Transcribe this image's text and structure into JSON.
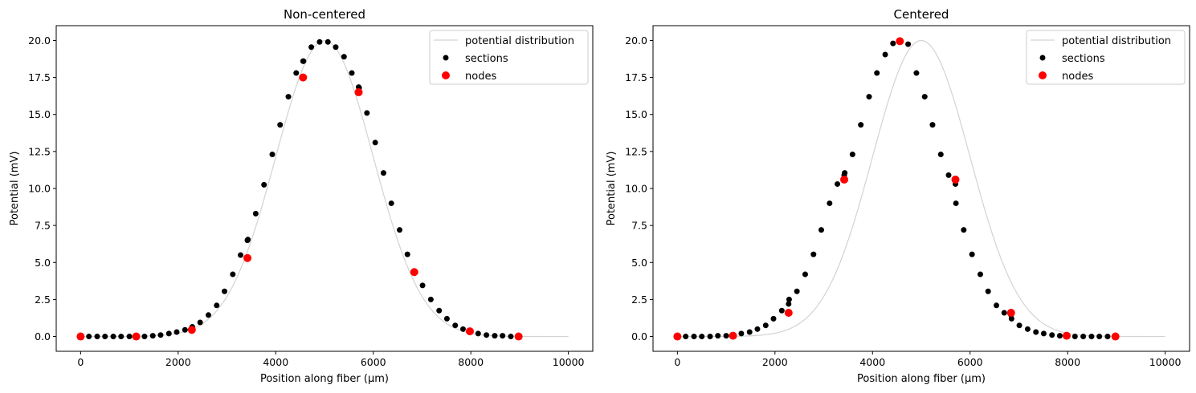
{
  "chart_data": [
    {
      "type": "scatter",
      "title": "Non-centered",
      "xlabel": "Position along fiber (µm)",
      "ylabel": "Potential (mV)",
      "xlim": [
        -500,
        10500
      ],
      "ylim": [
        -1.0,
        21.0
      ],
      "xticks": [
        0,
        2000,
        4000,
        6000,
        8000,
        10000
      ],
      "xtick_labels": [
        "0",
        "2000",
        "4000",
        "6000",
        "8000",
        "10000"
      ],
      "yticks": [
        0.0,
        2.5,
        5.0,
        7.5,
        10.0,
        12.5,
        15.0,
        17.5,
        20.0
      ],
      "ytick_labels": [
        "0.0",
        "2.5",
        "5.0",
        "7.5",
        "10.0",
        "12.5",
        "15.0",
        "17.5",
        "20.0"
      ],
      "grid": false,
      "legend": {
        "position": "top-right",
        "entries": [
          "potential distribution",
          "sections",
          "nodes"
        ]
      },
      "curve": {
        "name": "potential distribution",
        "color": "#d3d3d3",
        "x0": 0,
        "x1": 10000,
        "amplitude": 20,
        "center": 5000,
        "sigma": 1000
      },
      "series": [
        {
          "name": "sections",
          "color": "#000000",
          "x": [
            0,
            10,
            170,
            340,
            500,
            670,
            830,
            1000,
            1140,
            1150,
            1310,
            1480,
            1640,
            1810,
            1970,
            2140,
            2280,
            2290,
            2450,
            2620,
            2790,
            2950,
            3120,
            3280,
            3420,
            3430,
            3590,
            3760,
            3930,
            4090,
            4260,
            4420,
            4560,
            4570,
            4730,
            4900,
            5070,
            5230,
            5400,
            5560,
            5700,
            5710,
            5870,
            6040,
            6210,
            6370,
            6540,
            6700,
            6840,
            6850,
            7010,
            7180,
            7350,
            7510,
            7680,
            7840,
            7980,
            7990,
            8150,
            8320,
            8490,
            8650,
            8820,
            8980
          ],
          "y": [
            0.0,
            0.0,
            0.0,
            0.0,
            0.0,
            0.0,
            0.0,
            0.0,
            0.0,
            0.0,
            0.0,
            0.05,
            0.1,
            0.2,
            0.3,
            0.45,
            0.6,
            0.65,
            0.95,
            1.45,
            2.1,
            3.05,
            4.2,
            5.5,
            6.5,
            6.55,
            8.3,
            10.25,
            12.3,
            14.3,
            16.2,
            17.8,
            18.6,
            18.6,
            19.55,
            19.9,
            19.9,
            19.55,
            18.9,
            17.8,
            16.85,
            16.8,
            15.1,
            13.1,
            11.05,
            9.0,
            7.2,
            5.55,
            4.35,
            4.3,
            3.45,
            2.5,
            1.75,
            1.2,
            0.75,
            0.5,
            0.3,
            0.3,
            0.2,
            0.1,
            0.05,
            0.05,
            0.0,
            0.0
          ]
        },
        {
          "name": "nodes",
          "color": "#ff0000",
          "x": [
            0,
            1140,
            2280,
            3420,
            4560,
            5700,
            6840,
            7980,
            8980
          ],
          "y": [
            0.0,
            0.0,
            0.45,
            5.3,
            17.5,
            16.5,
            4.35,
            0.35,
            0.0
          ]
        }
      ]
    },
    {
      "type": "scatter",
      "title": "Centered",
      "xlabel": "Position along fiber (µm)",
      "ylabel": "Potential (mV)",
      "xlim": [
        -500,
        10500
      ],
      "ylim": [
        -1.0,
        21.0
      ],
      "xticks": [
        0,
        2000,
        4000,
        6000,
        8000,
        10000
      ],
      "xtick_labels": [
        "0",
        "2000",
        "4000",
        "6000",
        "8000",
        "10000"
      ],
      "yticks": [
        0.0,
        2.5,
        5.0,
        7.5,
        10.0,
        12.5,
        15.0,
        17.5,
        20.0
      ],
      "ytick_labels": [
        "0.0",
        "2.5",
        "5.0",
        "7.5",
        "10.0",
        "12.5",
        "15.0",
        "17.5",
        "20.0"
      ],
      "grid": false,
      "legend": {
        "position": "top-right",
        "entries": [
          "potential distribution",
          "sections",
          "nodes"
        ]
      },
      "curve": {
        "name": "potential distribution",
        "color": "#d3d3d3",
        "x0": 0,
        "x1": 10000,
        "amplitude": 20,
        "center": 5000,
        "sigma": 1000
      },
      "series": [
        {
          "name": "sections",
          "color": "#000000",
          "x": [
            0,
            10,
            170,
            340,
            500,
            670,
            830,
            1000,
            1140,
            1150,
            1310,
            1480,
            1640,
            1810,
            1970,
            2140,
            2280,
            2290,
            2450,
            2620,
            2790,
            2950,
            3120,
            3280,
            3420,
            3430,
            3590,
            3760,
            3930,
            4090,
            4260,
            4420,
            4560,
            4570,
            4730,
            4900,
            5070,
            5230,
            5400,
            5560,
            5700,
            5710,
            5870,
            6040,
            6210,
            6370,
            6540,
            6700,
            6840,
            6850,
            7010,
            7180,
            7350,
            7510,
            7680,
            7840,
            7980,
            7990,
            8150,
            8320,
            8490,
            8650,
            8820,
            8980
          ],
          "y": [
            0.0,
            0.0,
            0.0,
            0.0,
            0.0,
            0.0,
            0.05,
            0.05,
            0.1,
            0.1,
            0.2,
            0.3,
            0.5,
            0.75,
            1.2,
            1.75,
            2.2,
            2.5,
            3.05,
            4.2,
            5.55,
            7.2,
            9.0,
            10.3,
            10.9,
            11.05,
            12.3,
            14.3,
            16.2,
            17.8,
            19.05,
            19.8,
            19.9,
            19.9,
            19.75,
            17.8,
            16.2,
            14.3,
            12.3,
            10.9,
            10.3,
            9.0,
            7.2,
            5.55,
            4.2,
            3.05,
            2.1,
            1.6,
            1.45,
            1.2,
            0.75,
            0.5,
            0.3,
            0.2,
            0.1,
            0.05,
            0.05,
            0.0,
            0.0,
            0.0,
            0.0,
            0.0,
            0.0,
            0.0
          ]
        },
        {
          "name": "nodes",
          "color": "#ff0000",
          "x": [
            0,
            1140,
            2280,
            3420,
            4560,
            5700,
            6840,
            7980,
            8980
          ],
          "y": [
            0.0,
            0.05,
            1.6,
            10.6,
            19.95,
            10.6,
            1.6,
            0.05,
            0.0
          ]
        }
      ]
    }
  ]
}
